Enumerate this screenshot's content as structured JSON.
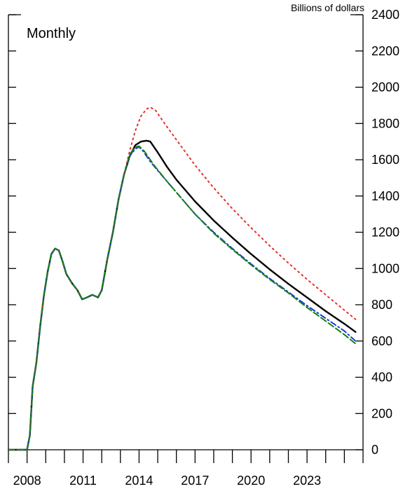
{
  "chart_data": {
    "type": "line",
    "units_label": "Billions of dollars",
    "frequency_label": "Monthly",
    "xlim": [
      2007.0,
      2026.0
    ],
    "ylim": [
      0,
      2400
    ],
    "x_ticks": [
      2008,
      2011,
      2014,
      2017,
      2020,
      2023
    ],
    "y_ticks": [
      0,
      200,
      400,
      600,
      800,
      1000,
      1200,
      1400,
      1600,
      1800,
      2000,
      2200,
      2400
    ],
    "legend": "none",
    "grid": false,
    "series": [
      {
        "color": "#000000",
        "dash": "solid",
        "points": [
          [
            2007.0,
            0
          ],
          [
            2008.0,
            0
          ],
          [
            2008.15,
            80
          ],
          [
            2008.3,
            350
          ],
          [
            2008.5,
            480
          ],
          [
            2008.7,
            680
          ],
          [
            2008.9,
            850
          ],
          [
            2009.1,
            980
          ],
          [
            2009.3,
            1080
          ],
          [
            2009.5,
            1110
          ],
          [
            2009.7,
            1100
          ],
          [
            2009.9,
            1040
          ],
          [
            2010.1,
            970
          ],
          [
            2010.4,
            920
          ],
          [
            2010.7,
            880
          ],
          [
            2010.95,
            830
          ],
          [
            2011.2,
            840
          ],
          [
            2011.5,
            855
          ],
          [
            2011.8,
            840
          ],
          [
            2012.0,
            880
          ],
          [
            2012.3,
            1050
          ],
          [
            2012.6,
            1200
          ],
          [
            2012.9,
            1380
          ],
          [
            2013.2,
            1520
          ],
          [
            2013.5,
            1620
          ],
          [
            2013.8,
            1680
          ],
          [
            2014.1,
            1700
          ],
          [
            2014.4,
            1705
          ],
          [
            2014.6,
            1700
          ],
          [
            2015.0,
            1640
          ],
          [
            2015.5,
            1560
          ],
          [
            2016.0,
            1490
          ],
          [
            2017.0,
            1370
          ],
          [
            2018.0,
            1265
          ],
          [
            2019.0,
            1170
          ],
          [
            2020.0,
            1080
          ],
          [
            2021.0,
            995
          ],
          [
            2022.0,
            915
          ],
          [
            2023.0,
            840
          ],
          [
            2024.0,
            765
          ],
          [
            2025.0,
            695
          ],
          [
            2025.6,
            650
          ]
        ]
      },
      {
        "color": "#e8302a",
        "dash": "dotted",
        "points": [
          [
            2007.0,
            0
          ],
          [
            2008.0,
            0
          ],
          [
            2008.15,
            80
          ],
          [
            2008.3,
            350
          ],
          [
            2008.5,
            480
          ],
          [
            2008.7,
            680
          ],
          [
            2008.9,
            850
          ],
          [
            2009.1,
            980
          ],
          [
            2009.3,
            1080
          ],
          [
            2009.5,
            1110
          ],
          [
            2009.7,
            1100
          ],
          [
            2009.9,
            1040
          ],
          [
            2010.1,
            970
          ],
          [
            2010.4,
            920
          ],
          [
            2010.7,
            880
          ],
          [
            2010.95,
            830
          ],
          [
            2011.2,
            840
          ],
          [
            2011.5,
            855
          ],
          [
            2011.8,
            840
          ],
          [
            2012.0,
            880
          ],
          [
            2012.3,
            1050
          ],
          [
            2012.6,
            1200
          ],
          [
            2012.9,
            1380
          ],
          [
            2013.2,
            1520
          ],
          [
            2013.5,
            1650
          ],
          [
            2013.8,
            1760
          ],
          [
            2014.1,
            1840
          ],
          [
            2014.4,
            1880
          ],
          [
            2014.6,
            1890
          ],
          [
            2014.9,
            1870
          ],
          [
            2015.3,
            1810
          ],
          [
            2016.0,
            1710
          ],
          [
            2017.0,
            1570
          ],
          [
            2018.0,
            1445
          ],
          [
            2019.0,
            1330
          ],
          [
            2020.0,
            1225
          ],
          [
            2021.0,
            1125
          ],
          [
            2022.0,
            1030
          ],
          [
            2023.0,
            940
          ],
          [
            2024.0,
            855
          ],
          [
            2025.0,
            770
          ],
          [
            2025.6,
            720
          ]
        ]
      },
      {
        "color": "#1a3adf",
        "dash": "dashdot",
        "points": [
          [
            2007.0,
            0
          ],
          [
            2008.0,
            0
          ],
          [
            2008.15,
            80
          ],
          [
            2008.3,
            350
          ],
          [
            2008.5,
            480
          ],
          [
            2008.7,
            680
          ],
          [
            2008.9,
            850
          ],
          [
            2009.1,
            980
          ],
          [
            2009.3,
            1080
          ],
          [
            2009.5,
            1110
          ],
          [
            2009.7,
            1100
          ],
          [
            2009.9,
            1040
          ],
          [
            2010.1,
            970
          ],
          [
            2010.4,
            920
          ],
          [
            2010.7,
            880
          ],
          [
            2010.95,
            830
          ],
          [
            2011.2,
            840
          ],
          [
            2011.5,
            855
          ],
          [
            2011.8,
            840
          ],
          [
            2012.0,
            880
          ],
          [
            2012.3,
            1050
          ],
          [
            2012.6,
            1200
          ],
          [
            2012.9,
            1380
          ],
          [
            2013.2,
            1520
          ],
          [
            2013.5,
            1620
          ],
          [
            2013.8,
            1660
          ],
          [
            2014.0,
            1670
          ],
          [
            2014.2,
            1650
          ],
          [
            2014.6,
            1590
          ],
          [
            2015.0,
            1540
          ],
          [
            2016.0,
            1420
          ],
          [
            2017.0,
            1300
          ],
          [
            2018.0,
            1200
          ],
          [
            2019.0,
            1110
          ],
          [
            2020.0,
            1025
          ],
          [
            2021.0,
            945
          ],
          [
            2022.0,
            870
          ],
          [
            2023.0,
            795
          ],
          [
            2024.0,
            725
          ],
          [
            2025.0,
            655
          ],
          [
            2025.6,
            600
          ]
        ]
      },
      {
        "color": "#168016",
        "dash": "dashed",
        "points": [
          [
            2007.0,
            0
          ],
          [
            2008.0,
            0
          ],
          [
            2008.15,
            80
          ],
          [
            2008.3,
            350
          ],
          [
            2008.5,
            480
          ],
          [
            2008.7,
            680
          ],
          [
            2008.9,
            850
          ],
          [
            2009.1,
            980
          ],
          [
            2009.3,
            1080
          ],
          [
            2009.5,
            1110
          ],
          [
            2009.7,
            1100
          ],
          [
            2009.9,
            1040
          ],
          [
            2010.1,
            970
          ],
          [
            2010.4,
            920
          ],
          [
            2010.7,
            880
          ],
          [
            2010.95,
            830
          ],
          [
            2011.2,
            840
          ],
          [
            2011.5,
            855
          ],
          [
            2011.8,
            840
          ],
          [
            2012.0,
            880
          ],
          [
            2012.3,
            1050
          ],
          [
            2012.6,
            1200
          ],
          [
            2012.9,
            1380
          ],
          [
            2013.2,
            1520
          ],
          [
            2013.5,
            1630
          ],
          [
            2013.8,
            1670
          ],
          [
            2014.0,
            1675
          ],
          [
            2014.3,
            1645
          ],
          [
            2014.8,
            1570
          ],
          [
            2015.5,
            1480
          ],
          [
            2016.0,
            1420
          ],
          [
            2017.0,
            1300
          ],
          [
            2018.0,
            1195
          ],
          [
            2019.0,
            1105
          ],
          [
            2020.0,
            1020
          ],
          [
            2021.0,
            940
          ],
          [
            2022.0,
            865
          ],
          [
            2023.0,
            785
          ],
          [
            2024.0,
            710
          ],
          [
            2025.0,
            635
          ],
          [
            2025.6,
            585
          ]
        ]
      }
    ]
  }
}
